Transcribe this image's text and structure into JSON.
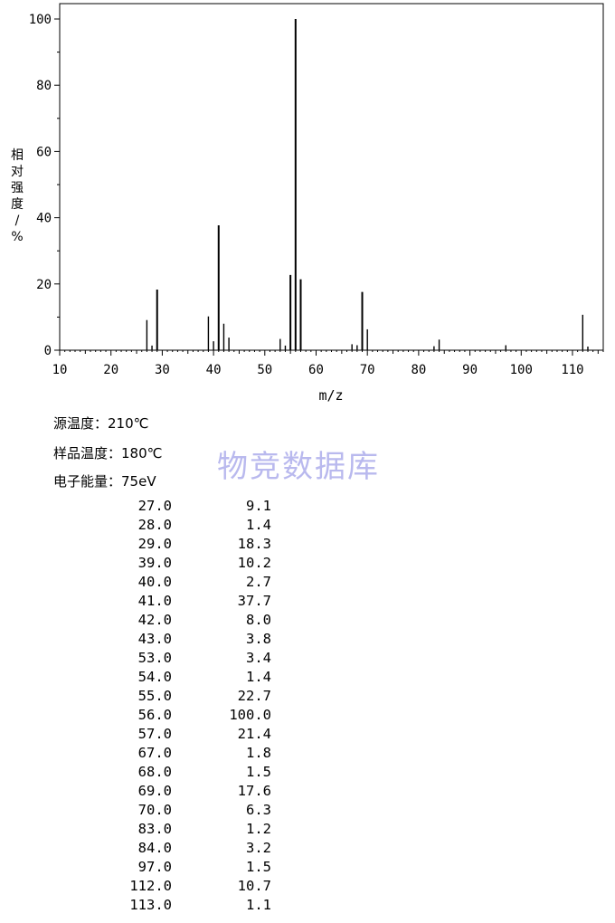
{
  "chart_data": {
    "type": "bar",
    "xlabel": "m/z",
    "ylabel": "相对强度/%",
    "xlim": [
      10,
      116
    ],
    "ylim": [
      0,
      100
    ],
    "xticks": [
      10,
      20,
      30,
      40,
      50,
      60,
      70,
      80,
      90,
      100,
      110
    ],
    "yticks": [
      0,
      20,
      40,
      60,
      80,
      100
    ],
    "peaks": [
      {
        "mz": 27,
        "intensity": 9.1
      },
      {
        "mz": 28,
        "intensity": 1.4
      },
      {
        "mz": 29,
        "intensity": 18.3
      },
      {
        "mz": 39,
        "intensity": 10.2
      },
      {
        "mz": 40,
        "intensity": 2.7
      },
      {
        "mz": 41,
        "intensity": 37.7
      },
      {
        "mz": 42,
        "intensity": 8.0
      },
      {
        "mz": 43,
        "intensity": 3.8
      },
      {
        "mz": 53,
        "intensity": 3.4
      },
      {
        "mz": 54,
        "intensity": 1.4
      },
      {
        "mz": 55,
        "intensity": 22.7
      },
      {
        "mz": 56,
        "intensity": 100.0
      },
      {
        "mz": 57,
        "intensity": 21.4
      },
      {
        "mz": 67,
        "intensity": 1.8
      },
      {
        "mz": 68,
        "intensity": 1.5
      },
      {
        "mz": 69,
        "intensity": 17.6
      },
      {
        "mz": 70,
        "intensity": 6.3
      },
      {
        "mz": 83,
        "intensity": 1.2
      },
      {
        "mz": 84,
        "intensity": 3.2
      },
      {
        "mz": 97,
        "intensity": 1.5
      },
      {
        "mz": 112,
        "intensity": 10.7
      },
      {
        "mz": 113,
        "intensity": 1.1
      }
    ]
  },
  "info": {
    "source_temp": "源温度：210℃",
    "sample_temp": "样品温度：180℃",
    "electron_energy": "电子能量：75eV"
  },
  "watermark": "物竞数据库",
  "peak_table": [
    {
      "mz": "27.0",
      "intensity": "9.1"
    },
    {
      "mz": "28.0",
      "intensity": "1.4"
    },
    {
      "mz": "29.0",
      "intensity": "18.3"
    },
    {
      "mz": "39.0",
      "intensity": "10.2"
    },
    {
      "mz": "40.0",
      "intensity": "2.7"
    },
    {
      "mz": "41.0",
      "intensity": "37.7"
    },
    {
      "mz": "42.0",
      "intensity": "8.0"
    },
    {
      "mz": "43.0",
      "intensity": "3.8"
    },
    {
      "mz": "53.0",
      "intensity": "3.4"
    },
    {
      "mz": "54.0",
      "intensity": "1.4"
    },
    {
      "mz": "55.0",
      "intensity": "22.7"
    },
    {
      "mz": "56.0",
      "intensity": "100.0"
    },
    {
      "mz": "57.0",
      "intensity": "21.4"
    },
    {
      "mz": "67.0",
      "intensity": "1.8"
    },
    {
      "mz": "68.0",
      "intensity": "1.5"
    },
    {
      "mz": "69.0",
      "intensity": "17.6"
    },
    {
      "mz": "70.0",
      "intensity": "6.3"
    },
    {
      "mz": "83.0",
      "intensity": "1.2"
    },
    {
      "mz": "84.0",
      "intensity": "3.2"
    },
    {
      "mz": "97.0",
      "intensity": "1.5"
    },
    {
      "mz": "112.0",
      "intensity": "10.7"
    },
    {
      "mz": "113.0",
      "intensity": "1.1"
    }
  ]
}
